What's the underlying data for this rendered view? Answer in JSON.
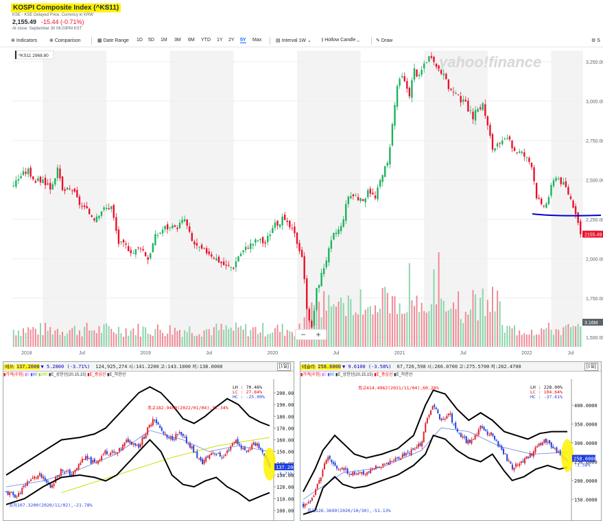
{
  "header": {
    "title": "KOSPI Composite Index (^KS11)",
    "exchange": "KSE - KSE Delayed Price. Currency in KRW",
    "price": "2,155.49",
    "change": "-15.44",
    "change_pct": "(-0.71%)",
    "close_time": "At close: September 30 06:03PM KST"
  },
  "toolbar": {
    "indicators": "Indicators",
    "comparison": "Comparison",
    "date_range": "Date Range",
    "ranges": [
      "1D",
      "5D",
      "1M",
      "3M",
      "6M",
      "YTD",
      "1Y",
      "2Y",
      "5Y",
      "Max"
    ],
    "selected_range": "5Y",
    "interval": "Interval",
    "interval_value": "1W",
    "chart_type": "Hollow Candle",
    "draw": "Draw",
    "settings": "S"
  },
  "watermark": "yahoo!finance",
  "colors": {
    "up": "#1bb25f",
    "down": "#eb0f29",
    "accent": "#0f69ff",
    "highlight": "#fff200",
    "support": "#0000c8"
  },
  "chart_data": [
    {
      "type": "candlestick",
      "title": "KOSPI Composite Index (^KS11)",
      "interval": "1W",
      "x_labels": [
        "2018",
        "Jul",
        "2019",
        "Jul",
        "2020",
        "Jul",
        "2021",
        "Jul",
        "2022",
        "Jul"
      ],
      "y_ticks": [
        1500,
        1750,
        2000,
        2250,
        2500,
        2750,
        3000,
        3250
      ],
      "y_tick_labels": [
        "1,500.00",
        "1,750.00",
        "2,000.00",
        "2,250.00",
        "2,500.00",
        "2,750.00",
        "3,000.00",
        "3,250.00"
      ],
      "ylim": [
        1440,
        3320
      ],
      "close_path": [
        [
          0,
          2470
        ],
        [
          3,
          2530
        ],
        [
          6,
          2560
        ],
        [
          9,
          2490
        ],
        [
          12,
          2500
        ],
        [
          15,
          2450
        ],
        [
          18,
          2560
        ],
        [
          20,
          2430
        ],
        [
          24,
          2440
        ],
        [
          27,
          2350
        ],
        [
          30,
          2300
        ],
        [
          33,
          2260
        ],
        [
          36,
          2310
        ],
        [
          40,
          2330
        ],
        [
          43,
          2100
        ],
        [
          46,
          2080
        ],
        [
          49,
          2040
        ],
        [
          52,
          2080
        ],
        [
          55,
          2000
        ],
        [
          58,
          2140
        ],
        [
          62,
          2200
        ],
        [
          66,
          2190
        ],
        [
          70,
          2250
        ],
        [
          73,
          2110
        ],
        [
          76,
          2060
        ],
        [
          80,
          2040
        ],
        [
          83,
          2000
        ],
        [
          87,
          1950
        ],
        [
          90,
          1950
        ],
        [
          92,
          2020
        ],
        [
          96,
          2080
        ],
        [
          100,
          2120
        ],
        [
          103,
          2100
        ],
        [
          106,
          2200
        ],
        [
          110,
          2250
        ],
        [
          113,
          2200
        ],
        [
          115,
          2150
        ],
        [
          118,
          2020
        ],
        [
          120,
          1700
        ],
        [
          122,
          1550
        ],
        [
          124,
          1800
        ],
        [
          126,
          1900
        ],
        [
          128,
          2000
        ],
        [
          131,
          2150
        ],
        [
          134,
          2200
        ],
        [
          137,
          2400
        ],
        [
          140,
          2400
        ],
        [
          143,
          2350
        ],
        [
          145,
          2450
        ],
        [
          148,
          2380
        ],
        [
          151,
          2550
        ],
        [
          153,
          2600
        ],
        [
          155,
          2850
        ],
        [
          157,
          3100
        ],
        [
          159,
          3150
        ],
        [
          162,
          3050
        ],
        [
          164,
          3200
        ],
        [
          166,
          3150
        ],
        [
          168,
          3240
        ],
        [
          170,
          3280
        ],
        [
          172,
          3230
        ],
        [
          175,
          3190
        ],
        [
          178,
          3090
        ],
        [
          180,
          3050
        ],
        [
          182,
          3020
        ],
        [
          185,
          2980
        ],
        [
          188,
          2900
        ],
        [
          190,
          2950
        ],
        [
          192,
          2980
        ],
        [
          194,
          2840
        ],
        [
          196,
          2700
        ],
        [
          199,
          2720
        ],
        [
          202,
          2760
        ],
        [
          205,
          2690
        ],
        [
          208,
          2670
        ],
        [
          212,
          2600
        ],
        [
          214,
          2400
        ],
        [
          216,
          2330
        ],
        [
          218,
          2350
        ],
        [
          220,
          2450
        ],
        [
          222,
          2530
        ],
        [
          224,
          2490
        ],
        [
          226,
          2450
        ],
        [
          228,
          2380
        ],
        [
          230,
          2300
        ],
        [
          232,
          2155
        ]
      ],
      "current_label": "2155.49",
      "tooltip": "^KS11  2968.80",
      "volume_label": "3.16M",
      "volume_scale_max": 5
    },
    {
      "type": "line",
      "stock_name": "에쓰",
      "price": "137.2000",
      "change": "▼ 5.2800 (-3.71%)",
      "volume": "124,925,274",
      "open": "시:141.2200",
      "high": "고:143.1000",
      "low": "저:138.0000",
      "period_button": "[1일]",
      "legend": [
        "▮가격(수정)",
        "▮5",
        "▮60",
        "▮200",
        "▮E_상한선(20,15,15)",
        "▮E_중심선",
        "▮E_하한선"
      ],
      "y_ticks": [
        100,
        110,
        120,
        130,
        140,
        150,
        160,
        170,
        180,
        190,
        200
      ],
      "y_tick_labels": [
        "100.0000",
        "110.0000",
        "120.0000",
        "130.0000",
        "140.0000",
        "150.0000",
        "160.0000",
        "170.0000",
        "180.0000",
        "190.0000",
        "200.0000"
      ],
      "ylim": [
        95,
        207
      ],
      "stats": [
        "LH :  70.46%",
        "LC :  27.84%",
        "HC :  -25.00%"
      ],
      "max_annotation": "최고182.9400(2022/01/04),33.34%",
      "min_annotation": "최저107.3200(2020/11/02),-21.78%",
      "price_tag": "137.2000",
      "pct_tag": "-3.71%",
      "price_path": [
        [
          0,
          115
        ],
        [
          6,
          112
        ],
        [
          12,
          125
        ],
        [
          18,
          130
        ],
        [
          24,
          120
        ],
        [
          30,
          135
        ],
        [
          36,
          130
        ],
        [
          42,
          145
        ],
        [
          48,
          140
        ],
        [
          54,
          150
        ],
        [
          60,
          148
        ],
        [
          66,
          160
        ],
        [
          72,
          155
        ],
        [
          78,
          172
        ],
        [
          80,
          180
        ],
        [
          84,
          168
        ],
        [
          88,
          160
        ],
        [
          94,
          165
        ],
        [
          100,
          155
        ],
        [
          106,
          140
        ],
        [
          112,
          150
        ],
        [
          118,
          145
        ],
        [
          124,
          160
        ],
        [
          130,
          150
        ],
        [
          136,
          158
        ],
        [
          140,
          145
        ],
        [
          143,
          137
        ]
      ],
      "upper_path": [
        [
          0,
          130
        ],
        [
          10,
          140
        ],
        [
          20,
          150
        ],
        [
          30,
          160
        ],
        [
          40,
          162
        ],
        [
          48,
          165
        ],
        [
          54,
          170
        ],
        [
          60,
          180
        ],
        [
          66,
          190
        ],
        [
          72,
          200
        ],
        [
          78,
          205
        ],
        [
          84,
          200
        ],
        [
          90,
          190
        ],
        [
          96,
          178
        ],
        [
          102,
          174
        ],
        [
          108,
          180
        ],
        [
          114,
          188
        ],
        [
          120,
          195
        ],
        [
          126,
          190
        ],
        [
          132,
          180
        ],
        [
          138,
          175
        ],
        [
          143,
          172
        ]
      ],
      "lower_path": [
        [
          0,
          105
        ],
        [
          10,
          110
        ],
        [
          20,
          120
        ],
        [
          30,
          128
        ],
        [
          40,
          130
        ],
        [
          48,
          128
        ],
        [
          54,
          125
        ],
        [
          60,
          130
        ],
        [
          66,
          140
        ],
        [
          72,
          150
        ],
        [
          78,
          160
        ],
        [
          84,
          150
        ],
        [
          90,
          130
        ],
        [
          96,
          122
        ],
        [
          102,
          120
        ],
        [
          108,
          125
        ],
        [
          114,
          128
        ],
        [
          120,
          120
        ],
        [
          126,
          115
        ],
        [
          132,
          108
        ],
        [
          138,
          112
        ],
        [
          143,
          115
        ]
      ],
      "ma200_path": [
        [
          30,
          115
        ],
        [
          60,
          130
        ],
        [
          90,
          145
        ],
        [
          115,
          155
        ],
        [
          143,
          162
        ]
      ],
      "ma60_path": [
        [
          0,
          120
        ],
        [
          20,
          125
        ],
        [
          40,
          135
        ],
        [
          60,
          148
        ],
        [
          78,
          168
        ],
        [
          96,
          160
        ],
        [
          110,
          150
        ],
        [
          126,
          155
        ],
        [
          143,
          150
        ]
      ]
    },
    {
      "type": "line",
      "stock_name": "테슬라",
      "price": "258.6000",
      "change": "▼ 9.6100 (-3.58%)",
      "volume": "67,726,598",
      "open": "시:266.0700",
      "high": "고:275.5700",
      "low": "저:262.4700",
      "period_button": "[1일]",
      "legend": [
        "▮가격(수정)",
        "▮5",
        "▮60",
        "▮E_상한선(20,15,15)",
        "▮E_중심선",
        "▮E_하한선"
      ],
      "y_ticks": [
        150,
        200,
        250,
        300,
        350,
        400
      ],
      "y_tick_labels": [
        "150.0000",
        "200.0000",
        "250.0000",
        "300.0000",
        "350.0000",
        "400.0000"
      ],
      "ylim": [
        105,
        455
      ],
      "stats": [
        "LH :  228.00%",
        "LC :  104.64%",
        "HC :  -37.61%"
      ],
      "max_annotation": "최고414.4962(2021/11/04),60.28%",
      "min_annotation": "최저126.3699(2020/10/30),-51.13%",
      "price_tag": "258.6000",
      "pct_tag": "-3.58%",
      "price_path": [
        [
          0,
          135
        ],
        [
          4,
          140
        ],
        [
          8,
          200
        ],
        [
          12,
          260
        ],
        [
          16,
          240
        ],
        [
          20,
          230
        ],
        [
          26,
          215
        ],
        [
          32,
          220
        ],
        [
          38,
          240
        ],
        [
          44,
          250
        ],
        [
          50,
          265
        ],
        [
          56,
          280
        ],
        [
          60,
          300
        ],
        [
          62,
          350
        ],
        [
          66,
          400
        ],
        [
          70,
          360
        ],
        [
          74,
          380
        ],
        [
          78,
          330
        ],
        [
          84,
          300
        ],
        [
          90,
          340
        ],
        [
          96,
          320
        ],
        [
          102,
          270
        ],
        [
          106,
          235
        ],
        [
          110,
          250
        ],
        [
          116,
          270
        ],
        [
          120,
          300
        ],
        [
          124,
          305
        ],
        [
          128,
          280
        ],
        [
          132,
          262
        ],
        [
          134,
          259
        ]
      ],
      "upper_path": [
        [
          0,
          170
        ],
        [
          6,
          230
        ],
        [
          10,
          280
        ],
        [
          16,
          320
        ],
        [
          20,
          300
        ],
        [
          26,
          270
        ],
        [
          32,
          260
        ],
        [
          40,
          270
        ],
        [
          48,
          285
        ],
        [
          56,
          320
        ],
        [
          62,
          400
        ],
        [
          66,
          440
        ],
        [
          72,
          430
        ],
        [
          78,
          390
        ],
        [
          84,
          360
        ],
        [
          90,
          380
        ],
        [
          96,
          360
        ],
        [
          102,
          330
        ],
        [
          108,
          320
        ],
        [
          114,
          310
        ],
        [
          120,
          325
        ],
        [
          126,
          330
        ],
        [
          134,
          330
        ]
      ],
      "lower_path": [
        [
          0,
          110
        ],
        [
          6,
          120
        ],
        [
          10,
          180
        ],
        [
          16,
          210
        ],
        [
          20,
          190
        ],
        [
          26,
          180
        ],
        [
          32,
          185
        ],
        [
          40,
          200
        ],
        [
          48,
          215
        ],
        [
          56,
          240
        ],
        [
          62,
          270
        ],
        [
          66,
          320
        ],
        [
          72,
          310
        ],
        [
          78,
          280
        ],
        [
          84,
          260
        ],
        [
          90,
          250
        ],
        [
          96,
          270
        ],
        [
          102,
          225
        ],
        [
          106,
          200
        ],
        [
          112,
          210
        ],
        [
          118,
          230
        ],
        [
          124,
          240
        ],
        [
          130,
          230
        ],
        [
          134,
          235
        ]
      ],
      "ma60_path": [
        [
          0,
          150
        ],
        [
          20,
          220
        ],
        [
          40,
          235
        ],
        [
          60,
          280
        ],
        [
          70,
          340
        ],
        [
          84,
          330
        ],
        [
          100,
          290
        ],
        [
          116,
          270
        ],
        [
          134,
          275
        ]
      ]
    }
  ]
}
